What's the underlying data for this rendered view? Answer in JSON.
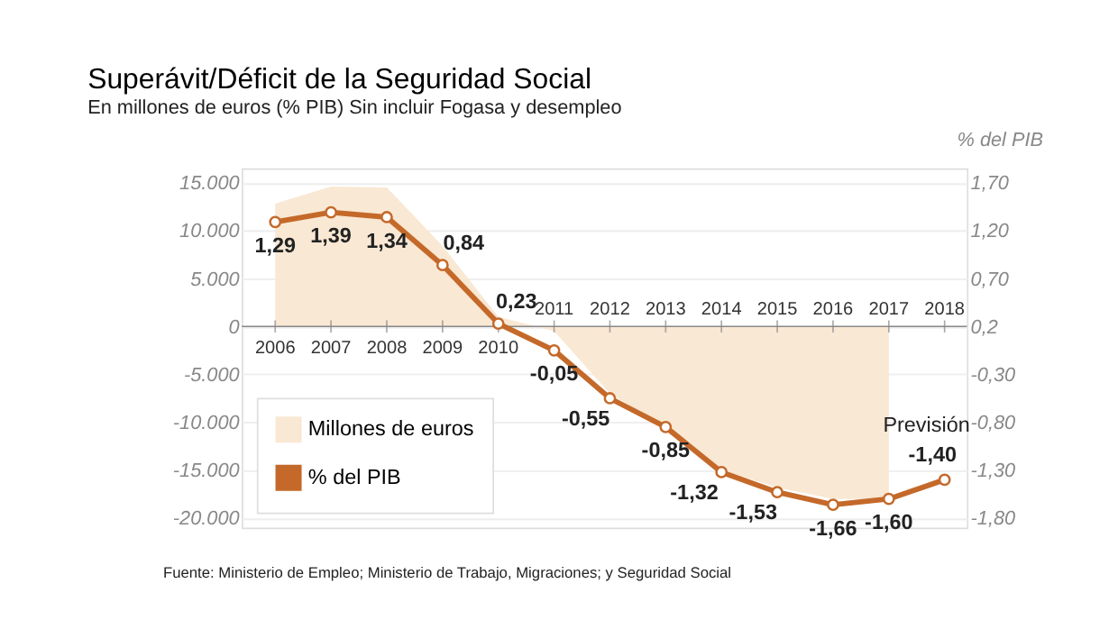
{
  "chart_data": {
    "type": "line",
    "title": "Superávit/Déficit de la Seguridad Social",
    "subtitle": "En millones de euros (% PIB) Sin incluir Fogasa y desempleo",
    "y2label": "% del PIB",
    "categories": [
      "2006",
      "2007",
      "2008",
      "2009",
      "2010",
      "2011",
      "2012",
      "2013",
      "2014",
      "2015",
      "2016",
      "2017",
      "2018"
    ],
    "series": [
      {
        "name": "Millones de euros",
        "type": "area",
        "color": "#f9e8d3",
        "values": [
          12800,
          14600,
          14500,
          8400,
          1000,
          -500,
          -7000,
          -10500,
          -15000,
          -16800,
          -18000,
          -18000,
          null
        ]
      },
      {
        "name": "% del PIB",
        "axis": "y2",
        "marker": "circle",
        "color": "#c4692a",
        "values": [
          1.29,
          1.39,
          1.34,
          0.84,
          0.23,
          -0.05,
          -0.55,
          -0.85,
          -1.32,
          -1.53,
          -1.66,
          -1.6,
          -1.4
        ],
        "value_labels": [
          "1,29",
          "1,39",
          "1,34",
          "0,84",
          "0,23",
          "-0,05",
          "-0,55",
          "-0,85",
          "-1,32",
          "-1,53",
          "-1,66",
          "-1,60",
          "-1,40"
        ]
      }
    ],
    "ylim": [
      -21000,
      16500
    ],
    "yticks": [
      {
        "value": 15000,
        "label": "15.000"
      },
      {
        "value": 10000,
        "label": "10.000"
      },
      {
        "value": 5000,
        "label": "5.000"
      },
      0,
      {
        "value": -5000,
        "label": "-5.000"
      },
      {
        "value": -10000,
        "label": "-10.000"
      },
      {
        "value": -15000,
        "label": "-15.000"
      },
      {
        "value": -20000,
        "label": "-20.000"
      }
    ],
    "y2lim": [
      -1.9,
      1.85
    ],
    "y2ticks": [
      {
        "value": 1.7,
        "label": "1,70"
      },
      {
        "value": 1.2,
        "label": "1,20"
      },
      {
        "value": 0.7,
        "label": "0,70"
      },
      {
        "value": 0.2,
        "label": "0,2"
      },
      {
        "value": -0.3,
        "label": "-0,30"
      },
      {
        "value": -0.8,
        "label": "-0,80"
      },
      {
        "value": -1.3,
        "label": "-1,30"
      },
      {
        "value": -1.8,
        "label": "-1,80"
      }
    ],
    "grid": "y",
    "legend": "bottom left",
    "line_style": "solid",
    "annotations": [
      "Previsión",
      "Fuente: Ministerio de Empleo; Ministerio de Trabajo, Migraciones; y Seguridad Social"
    ]
  }
}
